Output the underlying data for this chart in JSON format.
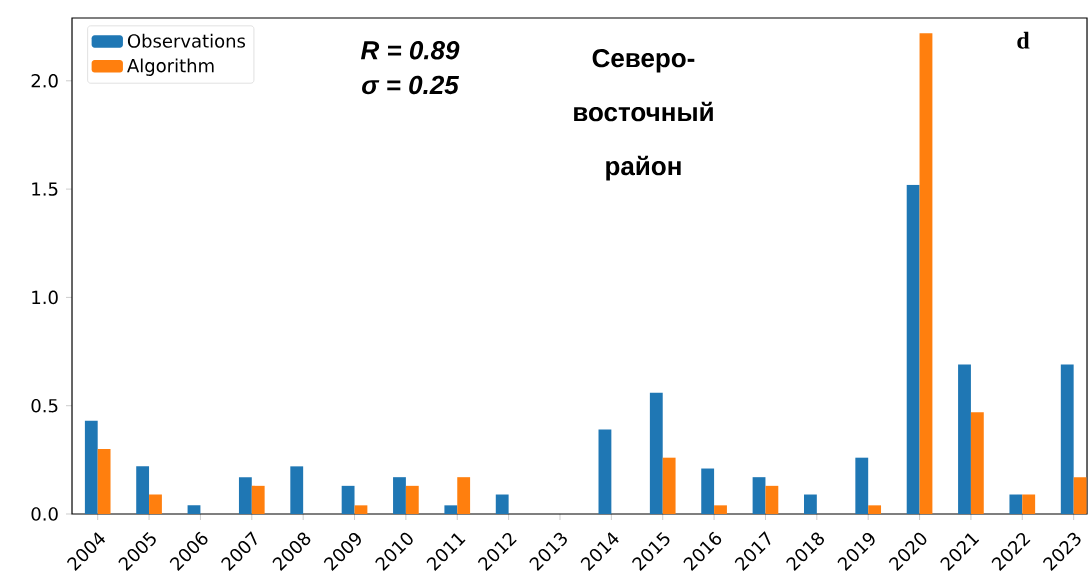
{
  "chart_data": {
    "type": "bar",
    "categories": [
      "2004",
      "2005",
      "2006",
      "2007",
      "2008",
      "2009",
      "2010",
      "2011",
      "2012",
      "2013",
      "2014",
      "2015",
      "2016",
      "2017",
      "2018",
      "2019",
      "2020",
      "2021",
      "2022",
      "2023"
    ],
    "series": [
      {
        "name": "Observations",
        "color": "#1f77b4",
        "values": [
          0.43,
          0.22,
          0.04,
          0.17,
          0.22,
          0.13,
          0.17,
          0.04,
          0.09,
          0,
          0.39,
          0.56,
          0.21,
          0.17,
          0.09,
          0.26,
          1.52,
          0.69,
          0.09,
          0.69
        ]
      },
      {
        "name": "Algorithm",
        "color": "#ff7f0e",
        "values": [
          0.3,
          0.09,
          0,
          0.13,
          0,
          0.04,
          0.13,
          0.17,
          0,
          0,
          0,
          0.26,
          0.04,
          0.13,
          0,
          0.04,
          2.22,
          0.47,
          0.09,
          0.17
        ]
      }
    ],
    "ylim": [
      0,
      2.29
    ],
    "yticks": [
      {
        "value": 0,
        "label": "0.0"
      },
      {
        "value": 0.5,
        "label": "0.5"
      },
      {
        "value": 1,
        "label": "1.0"
      },
      {
        "value": 1.5,
        "label": "1.5"
      },
      {
        "value": 2,
        "label": "2.0"
      }
    ],
    "annotations": [
      "R = 0.89",
      "σ = 0.25",
      "Северо-восточный район",
      "d"
    ],
    "legend": "top left",
    "grid": false
  }
}
